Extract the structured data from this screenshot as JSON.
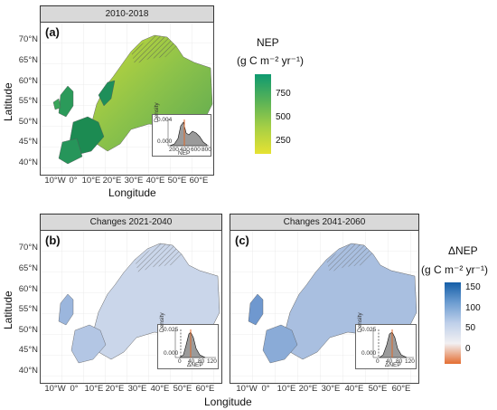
{
  "panels": {
    "a": {
      "strip": "2010-2018",
      "tag": "(a)"
    },
    "b": {
      "strip": "Changes 2021-2040",
      "tag": "(b)"
    },
    "c": {
      "strip": "Changes 2041-2060",
      "tag": "(c)"
    }
  },
  "axes": {
    "xlabel": "Longitude",
    "ylabel": "Latitude",
    "yticks": [
      "70°N",
      "65°N",
      "60°N",
      "55°N",
      "50°N",
      "45°N",
      "40°N"
    ],
    "xticks": [
      "10°W",
      "0°",
      "10°E",
      "20°E",
      "30°E",
      "40°E",
      "50°E",
      "60°E"
    ]
  },
  "legend_nep": {
    "title_line1": "NEP",
    "title_line2": "(g C m⁻² yr⁻¹)",
    "ticks": [
      "750",
      "500",
      "250"
    ],
    "colors": [
      "#1a9e6e",
      "#7cc04a",
      "#e6e232"
    ]
  },
  "legend_dnep": {
    "title_line1": "ΔNEP",
    "title_line2": "(g C m⁻² yr⁻¹)",
    "ticks": [
      "150",
      "100",
      "50",
      "0"
    ],
    "colors": [
      "#1a6fb4",
      "#8fb3dc",
      "#eef0f6",
      "#e2733a"
    ]
  },
  "inset_a": {
    "ylabel": "Density",
    "xlabel": "NEP",
    "yticks": [
      "0.004",
      "0.003",
      "0.002",
      "0.001",
      "0.000"
    ],
    "xticks": [
      "200",
      "400",
      "600",
      "800"
    ]
  },
  "inset_b": {
    "ylabel": "Density",
    "xlabel": "ΔNEP",
    "yticks": [
      "0.025",
      "0.020",
      "0.015",
      "0.010",
      "0.005",
      "0.000"
    ],
    "xticks": [
      "0",
      "40",
      "80",
      "120"
    ]
  },
  "inset_c": {
    "ylabel": "Density",
    "xlabel": "ΔNEP",
    "yticks": [
      "0.025",
      "0.020",
      "0.015",
      "0.010",
      "0.005",
      "0.000"
    ],
    "xticks": [
      "0",
      "40",
      "80",
      "120"
    ]
  }
}
